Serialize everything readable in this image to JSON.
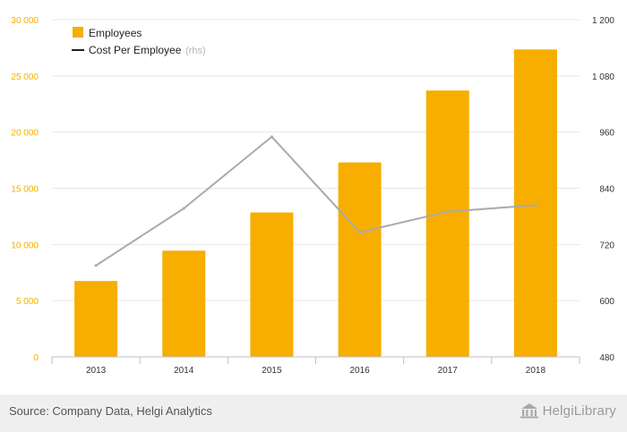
{
  "chart_data": {
    "type": "bar",
    "categories": [
      "2013",
      "2014",
      "2015",
      "2016",
      "2017",
      "2018"
    ],
    "series": [
      {
        "name": "Employees",
        "type": "bar",
        "axis": "left",
        "color": "#f7ae00",
        "values": [
          6750,
          9450,
          12850,
          17300,
          23700,
          27350
        ]
      },
      {
        "name": "Cost Per Employee",
        "type": "line",
        "axis": "right",
        "color": "#aaaaaa",
        "values": [
          675,
          797,
          950,
          746,
          790,
          804
        ]
      }
    ],
    "legend": [
      {
        "label": "Employees",
        "suffix": ""
      },
      {
        "label": "Cost Per Employee",
        "suffix": "(rhs)"
      }
    ],
    "y_left": {
      "min": 0,
      "max": 30000,
      "ticks": [
        0,
        5000,
        10000,
        15000,
        20000,
        25000,
        30000
      ],
      "tick_labels": [
        "0",
        "5 000",
        "10 000",
        "15 000",
        "20 000",
        "25 000",
        "30 000"
      ],
      "color": "#f7ae00"
    },
    "y_right": {
      "min": 480,
      "max": 1200,
      "ticks": [
        480,
        600,
        720,
        840,
        960,
        1080,
        1200
      ],
      "tick_labels": [
        "480",
        "600",
        "720",
        "840",
        "960",
        "1 080",
        "1 200"
      ],
      "color": "#333333"
    },
    "grid": true,
    "legend_position": "top-left"
  },
  "footer": {
    "source": "Source: Company Data, Helgi Analytics",
    "brand": "HelgiLibrary",
    "brand_icon": "library-building-icon"
  }
}
